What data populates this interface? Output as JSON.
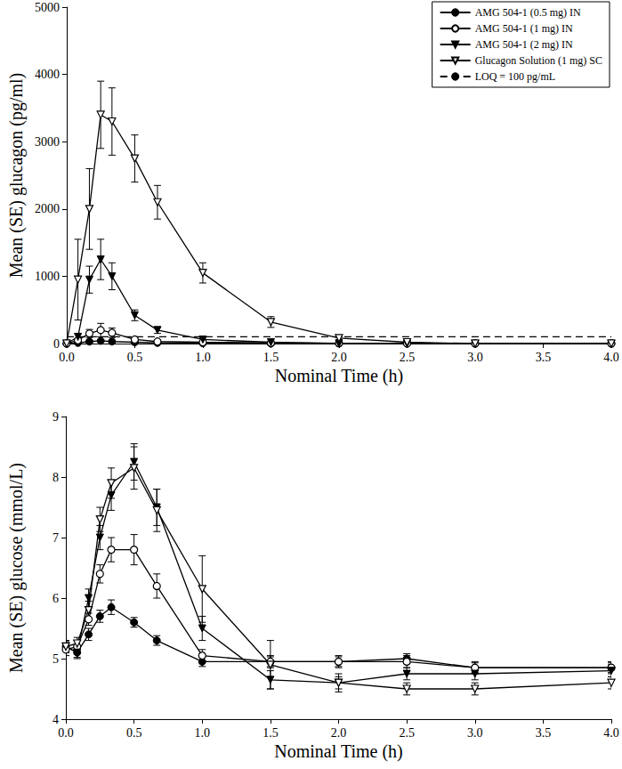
{
  "chart_data": [
    {
      "type": "line",
      "y_label": "Mean (SE) glucagon (pg/ml)",
      "x_label": "Nominal Time (h)",
      "x": [
        0,
        0.083,
        0.167,
        0.25,
        0.333,
        0.5,
        0.667,
        1,
        1.5,
        2,
        2.5,
        3,
        4
      ],
      "xlim": [
        0,
        4
      ],
      "xticks": [
        {
          "value": 0,
          "label": "0.0"
        },
        0.5,
        {
          "value": 1,
          "label": "1.0"
        },
        1.5,
        {
          "value": 2,
          "label": "2.0"
        },
        2.5,
        {
          "value": 3,
          "label": "3.0"
        },
        3.5,
        {
          "value": 4,
          "label": "4.0"
        }
      ],
      "ylim": [
        0,
        5000
      ],
      "yticks": [
        0,
        1000,
        2000,
        3000,
        4000,
        5000
      ],
      "grid": false,
      "legend": "upper right",
      "series": [
        {
          "name": "AMG 504-1 (0.5 mg) IN",
          "color": "#000000",
          "marker": "circle",
          "values": [
            0,
            10,
            30,
            40,
            30,
            20,
            10,
            5,
            0,
            0,
            0,
            0,
            0
          ],
          "errors": [
            5,
            10,
            15,
            15,
            15,
            10,
            5,
            5,
            0,
            0,
            0,
            0,
            0
          ]
        },
        {
          "name": "AMG 504-1 (1 mg) IN",
          "color": "#000000",
          "marker": "circle_open",
          "values": [
            0,
            50,
            150,
            200,
            160,
            60,
            30,
            20,
            10,
            5,
            0,
            0,
            0
          ],
          "errors": [
            5,
            20,
            60,
            100,
            70,
            20,
            10,
            5,
            5,
            0,
            0,
            0,
            0
          ]
        },
        {
          "name": "AMG 504-1 (2 mg) IN",
          "color": "#000000",
          "marker": "triangle_down",
          "values": [
            0,
            100,
            950,
            1250,
            1000,
            420,
            200,
            60,
            20,
            0,
            0,
            0,
            0
          ],
          "errors": [
            0,
            50,
            200,
            300,
            200,
            80,
            50,
            20,
            10,
            0,
            0,
            0,
            0
          ]
        },
        {
          "name": "Glucagon Solution (1 mg) SC",
          "color": "#000000",
          "marker": "triangle_down_open",
          "values": [
            0,
            950,
            2000,
            3400,
            3300,
            2750,
            2100,
            1050,
            320,
            80,
            20,
            0,
            0
          ],
          "errors": [
            0,
            600,
            600,
            500,
            500,
            350,
            250,
            150,
            80,
            20,
            10,
            0,
            0
          ]
        },
        {
          "name": "LOQ = 100 pg/mL",
          "color": "#000000",
          "marker": "none",
          "line_style": "dashed",
          "values": [
            100,
            100,
            100,
            100,
            100,
            100,
            100,
            100,
            100,
            100,
            100,
            100,
            100
          ]
        }
      ]
    },
    {
      "type": "line",
      "y_label": "Mean (SE) glucose (mmol/L)",
      "x_label": "Nominal Time (h)",
      "x": [
        0,
        0.083,
        0.167,
        0.25,
        0.333,
        0.5,
        0.667,
        1,
        1.5,
        2,
        2.5,
        3,
        4
      ],
      "xlim": [
        0,
        4
      ],
      "xticks": [
        {
          "value": 0,
          "label": "0.0"
        },
        0.5,
        {
          "value": 1,
          "label": "1.0"
        },
        1.5,
        {
          "value": 2,
          "label": "2.0"
        },
        2.5,
        {
          "value": 3,
          "label": "3.0"
        },
        3.5,
        {
          "value": 4,
          "label": "4.0"
        }
      ],
      "ylim": [
        4,
        9
      ],
      "yticks": [
        4,
        5,
        6,
        7,
        8,
        9
      ],
      "grid": false,
      "series": [
        {
          "name": "AMG 504-1 (0.5 mg) IN",
          "color": "#000000",
          "marker": "circle",
          "values": [
            5.2,
            5.1,
            5.4,
            5.7,
            5.85,
            5.6,
            5.3,
            4.95,
            4.95,
            4.95,
            5.0,
            4.85,
            4.85
          ],
          "errors": [
            0.08,
            0.08,
            0.1,
            0.1,
            0.12,
            0.08,
            0.08,
            0.08,
            0.08,
            0.08,
            0.08,
            0.08,
            0.08
          ]
        },
        {
          "name": "AMG 504-1 (1 mg) IN",
          "color": "#000000",
          "marker": "circle_open",
          "values": [
            5.15,
            5.2,
            5.65,
            6.4,
            6.8,
            6.8,
            6.2,
            5.05,
            4.95,
            4.95,
            4.95,
            4.85,
            4.85
          ],
          "errors": [
            0.1,
            0.1,
            0.1,
            0.15,
            0.2,
            0.25,
            0.2,
            0.1,
            0.1,
            0.1,
            0.1,
            0.1,
            0.1
          ]
        },
        {
          "name": "AMG 504-1 (2 mg) IN",
          "color": "#000000",
          "marker": "triangle_down",
          "values": [
            5.2,
            5.1,
            6.0,
            7.0,
            7.7,
            8.25,
            7.5,
            5.5,
            4.65,
            4.6,
            4.75,
            4.75,
            4.8
          ],
          "errors": [
            0.1,
            0.1,
            0.15,
            0.2,
            0.25,
            0.3,
            0.3,
            0.2,
            0.15,
            0.1,
            0.1,
            0.1,
            0.1
          ]
        },
        {
          "name": "Glucagon Solution (1 mg) SC",
          "color": "#000000",
          "marker": "triangle_down_open",
          "values": [
            5.2,
            5.25,
            5.8,
            7.3,
            7.9,
            8.15,
            7.45,
            6.15,
            4.9,
            4.6,
            4.5,
            4.5,
            4.6
          ],
          "errors": [
            0.1,
            0.1,
            0.15,
            0.2,
            0.25,
            0.35,
            0.35,
            0.55,
            0.4,
            0.15,
            0.1,
            0.1,
            0.1
          ]
        }
      ]
    }
  ]
}
